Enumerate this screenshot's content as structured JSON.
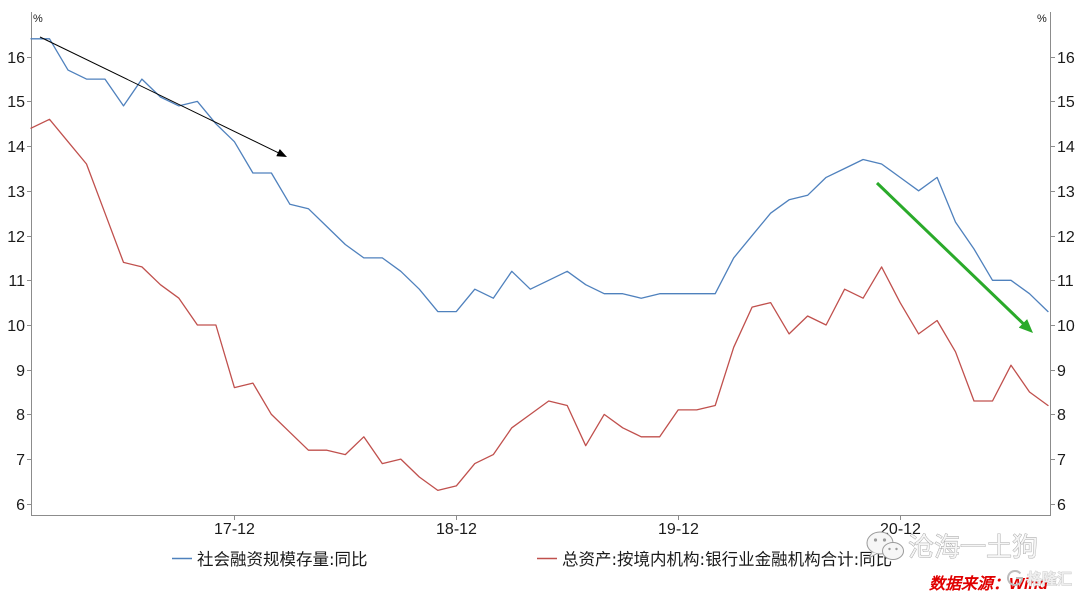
{
  "chart_data": {
    "type": "line",
    "title": "",
    "xlabel": "",
    "ylabel": "%",
    "y2label": "%",
    "x": [
      "17-01",
      "17-02",
      "17-03",
      "17-04",
      "17-05",
      "17-06",
      "17-07",
      "17-08",
      "17-09",
      "17-10",
      "17-11",
      "17-12",
      "18-01",
      "18-02",
      "18-03",
      "18-04",
      "18-05",
      "18-06",
      "18-07",
      "18-08",
      "18-09",
      "18-10",
      "18-11",
      "18-12",
      "19-01",
      "19-02",
      "19-03",
      "19-04",
      "19-05",
      "19-06",
      "19-07",
      "19-08",
      "19-09",
      "19-10",
      "19-11",
      "19-12",
      "20-01",
      "20-02",
      "20-03",
      "20-04",
      "20-05",
      "20-06",
      "20-07",
      "20-08",
      "20-09",
      "20-10",
      "20-11",
      "20-12",
      "21-01",
      "21-02",
      "21-03",
      "21-04",
      "21-05",
      "21-06",
      "21-07",
      "21-08"
    ],
    "x_ticks": [
      "17-12",
      "18-12",
      "19-12",
      "20-12"
    ],
    "ylim": [
      5.75,
      17
    ],
    "y2lim": [
      5.75,
      17
    ],
    "y_ticks": [
      6,
      7,
      8,
      9,
      10,
      11,
      12,
      13,
      14,
      15,
      16
    ],
    "y2_ticks": [
      6,
      7,
      8,
      9,
      10,
      11,
      12,
      13,
      14,
      15,
      16
    ],
    "grid": false,
    "legend": "bottom",
    "series": [
      {
        "name": "社会融资规模存量:同比",
        "color": "#4f81bd",
        "values": [
          16.4,
          16.4,
          15.7,
          15.5,
          15.5,
          14.9,
          15.5,
          15.1,
          14.9,
          15.0,
          14.5,
          14.1,
          13.4,
          13.4,
          12.7,
          12.6,
          12.2,
          11.8,
          11.5,
          11.5,
          11.2,
          10.8,
          10.3,
          10.3,
          10.8,
          10.6,
          11.2,
          10.8,
          11.0,
          11.2,
          10.9,
          10.7,
          10.7,
          10.6,
          10.7,
          10.7,
          10.7,
          10.7,
          11.5,
          12.0,
          12.5,
          12.8,
          12.9,
          13.3,
          13.5,
          13.7,
          13.6,
          13.3,
          13.0,
          13.3,
          12.3,
          11.7,
          11.0,
          11.0,
          10.7,
          10.3
        ]
      },
      {
        "name": "总资产:按境内机构:银行业金融机构合计:同比",
        "color": "#c0504d",
        "values": [
          14.4,
          14.6,
          14.1,
          13.6,
          12.5,
          11.4,
          11.3,
          10.9,
          10.6,
          10.0,
          10.0,
          8.6,
          8.7,
          8.0,
          7.6,
          7.2,
          7.2,
          7.1,
          7.5,
          6.9,
          7.0,
          6.6,
          6.3,
          6.4,
          6.9,
          7.1,
          7.7,
          8.0,
          8.3,
          8.2,
          7.3,
          8.0,
          7.7,
          7.5,
          7.5,
          8.1,
          8.1,
          8.2,
          9.5,
          10.4,
          10.5,
          9.8,
          10.2,
          10.0,
          10.8,
          10.6,
          11.3,
          10.5,
          9.8,
          10.1,
          9.4,
          8.3,
          8.3,
          9.1,
          8.5,
          8.2
        ]
      }
    ],
    "arrow_colors": [
      "#000000",
      "#2aaa2a"
    ]
  },
  "watermark": {
    "text": "沧海一土狗",
    "icon": "wechat-icon"
  },
  "source": "数据来源：Wind",
  "logo": {
    "text": "格隆汇",
    "icon": "gelonghui-logo-icon"
  }
}
